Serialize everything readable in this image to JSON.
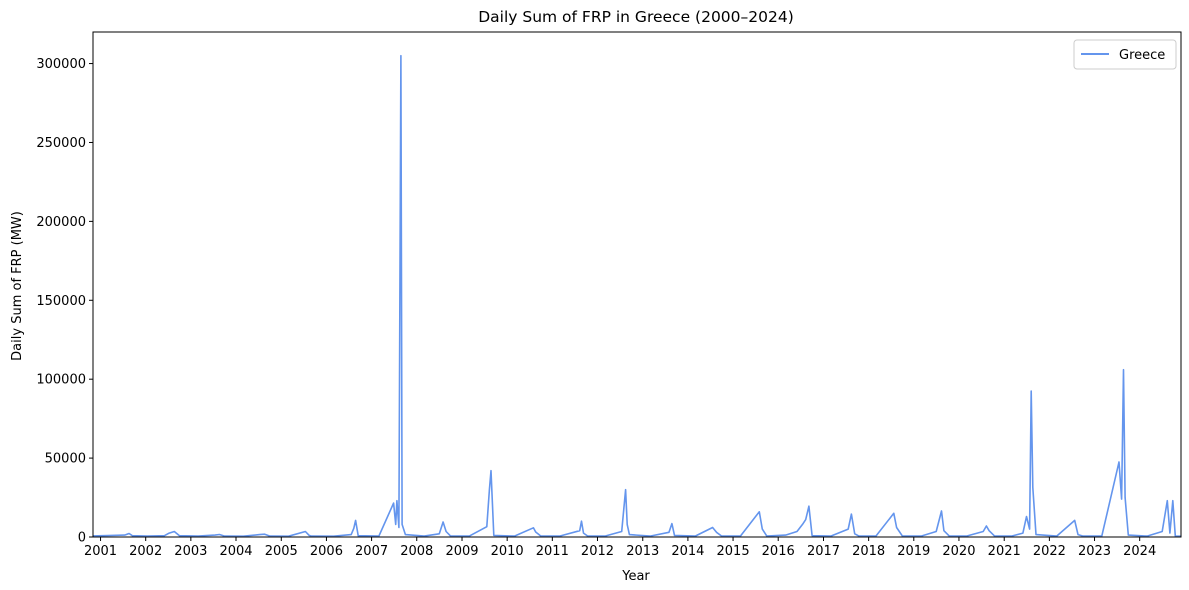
{
  "chart_data": {
    "type": "line",
    "title": "Daily Sum of FRP in Greece (2000–2024)",
    "xlabel": "Year",
    "ylabel": "Daily Sum of FRP (MW)",
    "x_tick_labels": [
      "2001",
      "2002",
      "2003",
      "2004",
      "2005",
      "2006",
      "2007",
      "2008",
      "2009",
      "2010",
      "2011",
      "2012",
      "2013",
      "2014",
      "2015",
      "2016",
      "2017",
      "2018",
      "2019",
      "2020",
      "2021",
      "2022",
      "2023",
      "2024"
    ],
    "y_tick_labels": [
      "0",
      "50000",
      "100000",
      "150000",
      "200000",
      "250000",
      "300000"
    ],
    "xlim": [
      "2000-11-01",
      "2024-11-30"
    ],
    "ylim": [
      0,
      320000
    ],
    "grid": false,
    "legend_position": "top-right",
    "series": [
      {
        "name": "Greece",
        "color": "#6495ED",
        "points": [
          [
            "2000-11-01",
            700
          ],
          [
            "2001-03-01",
            900
          ],
          [
            "2001-07-15",
            1200
          ],
          [
            "2001-08-20",
            2200
          ],
          [
            "2001-09-15",
            800
          ],
          [
            "2002-01-15",
            600
          ],
          [
            "2002-06-01",
            800
          ],
          [
            "2002-07-10",
            2500
          ],
          [
            "2002-08-20",
            3500
          ],
          [
            "2002-10-01",
            800
          ],
          [
            "2003-03-01",
            600
          ],
          [
            "2003-07-15",
            1200
          ],
          [
            "2003-08-20",
            1600
          ],
          [
            "2003-10-01",
            600
          ],
          [
            "2004-03-01",
            500
          ],
          [
            "2004-07-10",
            1500
          ],
          [
            "2004-08-20",
            1800
          ],
          [
            "2004-10-01",
            600
          ],
          [
            "2005-03-01",
            500
          ],
          [
            "2005-07-15",
            3500
          ],
          [
            "2005-08-15",
            1000
          ],
          [
            "2005-09-01",
            600
          ],
          [
            "2006-03-01",
            500
          ],
          [
            "2006-07-20",
            1500
          ],
          [
            "2006-08-10",
            5500
          ],
          [
            "2006-08-25",
            10500
          ],
          [
            "2006-09-15",
            800
          ],
          [
            "2007-03-01",
            600
          ],
          [
            "2007-06-28",
            21500
          ],
          [
            "2007-07-15",
            8000
          ],
          [
            "2007-07-25",
            23000
          ],
          [
            "2007-08-10",
            6000
          ],
          [
            "2007-08-26",
            305000
          ],
          [
            "2007-09-05",
            8000
          ],
          [
            "2007-10-01",
            1500
          ],
          [
            "2008-03-01",
            600
          ],
          [
            "2008-07-01",
            2000
          ],
          [
            "2008-08-01",
            9500
          ],
          [
            "2008-08-25",
            3500
          ],
          [
            "2008-10-01",
            600
          ],
          [
            "2009-03-01",
            600
          ],
          [
            "2009-07-20",
            6500
          ],
          [
            "2009-08-10",
            30000
          ],
          [
            "2009-08-23",
            42000
          ],
          [
            "2009-09-15",
            1000
          ],
          [
            "2010-03-01",
            600
          ],
          [
            "2010-08-01",
            5800
          ],
          [
            "2010-08-20",
            3200
          ],
          [
            "2010-10-01",
            600
          ],
          [
            "2011-03-01",
            600
          ],
          [
            "2011-08-10",
            4000
          ],
          [
            "2011-08-25",
            10000
          ],
          [
            "2011-09-10",
            2500
          ],
          [
            "2011-10-15",
            600
          ],
          [
            "2012-03-01",
            600
          ],
          [
            "2012-07-15",
            3500
          ],
          [
            "2012-08-15",
            30000
          ],
          [
            "2012-08-28",
            8000
          ],
          [
            "2012-09-15",
            1500
          ],
          [
            "2013-03-01",
            600
          ],
          [
            "2013-08-01",
            3000
          ],
          [
            "2013-08-25",
            8500
          ],
          [
            "2013-09-15",
            1000
          ],
          [
            "2014-03-01",
            600
          ],
          [
            "2014-07-20",
            6000
          ],
          [
            "2014-08-20",
            3000
          ],
          [
            "2014-10-01",
            600
          ],
          [
            "2015-03-01",
            600
          ],
          [
            "2015-08-01",
            16000
          ],
          [
            "2015-08-25",
            5000
          ],
          [
            "2015-10-01",
            600
          ],
          [
            "2016-03-01",
            1200
          ],
          [
            "2016-06-01",
            3500
          ],
          [
            "2016-07-15",
            8000
          ],
          [
            "2016-08-10",
            11000
          ],
          [
            "2016-09-05",
            19500
          ],
          [
            "2016-10-01",
            800
          ],
          [
            "2017-03-01",
            600
          ],
          [
            "2017-07-20",
            5000
          ],
          [
            "2017-08-15",
            14500
          ],
          [
            "2017-09-10",
            2000
          ],
          [
            "2017-10-15",
            600
          ],
          [
            "2018-03-01",
            600
          ],
          [
            "2018-07-23",
            15000
          ],
          [
            "2018-08-15",
            6000
          ],
          [
            "2018-10-01",
            600
          ],
          [
            "2019-03-01",
            600
          ],
          [
            "2019-07-01",
            3500
          ],
          [
            "2019-08-13",
            16500
          ],
          [
            "2019-09-01",
            4000
          ],
          [
            "2019-10-15",
            600
          ],
          [
            "2020-03-01",
            600
          ],
          [
            "2020-07-15",
            3500
          ],
          [
            "2020-08-10",
            7000
          ],
          [
            "2020-09-01",
            4000
          ],
          [
            "2020-10-15",
            600
          ],
          [
            "2021-03-01",
            600
          ],
          [
            "2021-06-01",
            2500
          ],
          [
            "2021-06-30",
            13000
          ],
          [
            "2021-07-25",
            5000
          ],
          [
            "2021-08-07",
            92500
          ],
          [
            "2021-08-20",
            31500
          ],
          [
            "2021-09-15",
            1500
          ],
          [
            "2022-03-01",
            600
          ],
          [
            "2022-07-25",
            10500
          ],
          [
            "2022-08-20",
            1500
          ],
          [
            "2022-10-01",
            600
          ],
          [
            "2023-03-01",
            600
          ],
          [
            "2023-07-18",
            47500
          ],
          [
            "2023-08-08",
            24000
          ],
          [
            "2023-08-23",
            106000
          ],
          [
            "2023-09-05",
            25000
          ],
          [
            "2023-10-01",
            1200
          ],
          [
            "2024-03-01",
            600
          ],
          [
            "2024-07-01",
            3500
          ],
          [
            "2024-08-11",
            23000
          ],
          [
            "2024-09-01",
            2500
          ],
          [
            "2024-09-25",
            23000
          ],
          [
            "2024-10-15",
            600
          ],
          [
            "2024-11-30",
            500
          ]
        ]
      }
    ]
  }
}
